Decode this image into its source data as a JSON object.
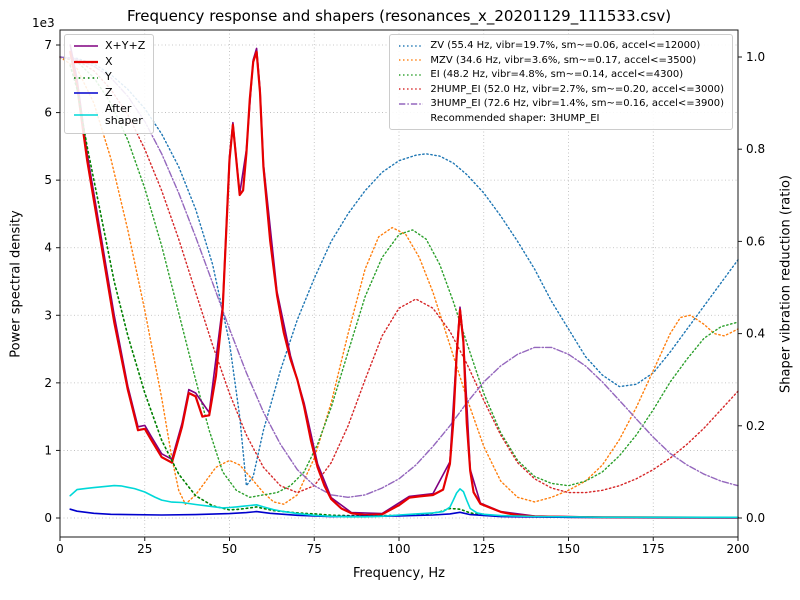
{
  "chart_data": {
    "type": "line",
    "title": "Frequency response and shapers (resonances_x_20201129_111533.csv)",
    "xlabel": "Frequency, Hz",
    "ylabel_left": "Power spectral density",
    "ylabel_right": "Shaper vibration reduction (ratio)",
    "offset_text": "1e3",
    "xlim": [
      0,
      200
    ],
    "ylim_left": [
      0,
      7000
    ],
    "ylim_right": [
      0,
      1.05
    ],
    "grid": true,
    "x_ticks": [
      0,
      25,
      50,
      75,
      100,
      125,
      150,
      175,
      200
    ],
    "y_left_ticks": [
      0,
      1,
      2,
      3,
      4,
      5,
      6,
      7
    ],
    "y_right_ticks": [
      0,
      0.2,
      0.4,
      0.6,
      0.8,
      1.0
    ],
    "y_right_tick_labels": [
      "0.0",
      "0.2",
      "0.4",
      "0.6",
      "0.8",
      "1.0"
    ],
    "psd_series": [
      {
        "name": "X+Y+Z",
        "legend_label": "X+Y+Z",
        "color": "#800080",
        "style": "solid",
        "width": 1.6,
        "x": [
          3,
          5,
          8,
          12,
          16,
          20,
          23,
          25,
          27,
          30,
          33,
          36,
          38,
          40,
          44,
          48,
          50,
          51,
          53,
          55,
          57,
          58,
          59,
          60,
          64,
          68,
          72,
          76,
          80,
          86,
          95,
          103,
          110,
          115,
          117,
          118,
          119,
          121,
          124,
          130,
          140,
          160,
          200
        ],
        "y": [
          7000,
          6500,
          5400,
          4200,
          3000,
          1950,
          1350,
          1370,
          1200,
          950,
          870,
          1400,
          1900,
          1850,
          1560,
          3150,
          5350,
          5850,
          4800,
          5450,
          6780,
          6950,
          6350,
          5250,
          3350,
          2400,
          1700,
          800,
          300,
          80,
          65,
          320,
          360,
          830,
          2450,
          3120,
          2650,
          720,
          220,
          95,
          30,
          12,
          6
        ]
      },
      {
        "name": "X",
        "legend_label": "X",
        "color": "#e60000",
        "style": "solid",
        "width": 2.2,
        "x": [
          3,
          5,
          8,
          12,
          16,
          20,
          23,
          25,
          27,
          30,
          33,
          36,
          38,
          40,
          42,
          44,
          46,
          48,
          50,
          51,
          52,
          53,
          54,
          55,
          56,
          57,
          58,
          59,
          60,
          62,
          64,
          66,
          68,
          70,
          72,
          74,
          76,
          78,
          80,
          83,
          86,
          90,
          95,
          100,
          103,
          106,
          110,
          113,
          115,
          116,
          117,
          118,
          119,
          120,
          121,
          122,
          124,
          127,
          130,
          135,
          140,
          150,
          160,
          180,
          200
        ],
        "y": [
          6900,
          6400,
          5300,
          4100,
          2900,
          1900,
          1300,
          1320,
          1150,
          900,
          820,
          1350,
          1850,
          1800,
          1500,
          1520,
          2100,
          3100,
          5300,
          5820,
          5300,
          4780,
          4850,
          5400,
          6200,
          6750,
          6900,
          6300,
          5200,
          4100,
          3300,
          2750,
          2350,
          2050,
          1650,
          1150,
          750,
          480,
          280,
          140,
          70,
          45,
          55,
          190,
          300,
          320,
          340,
          420,
          800,
          1400,
          2400,
          3080,
          2600,
          1400,
          700,
          380,
          210,
          150,
          90,
          40,
          25,
          15,
          10,
          8,
          5
        ]
      },
      {
        "name": "Y",
        "legend_label": "Y",
        "color": "#008000",
        "style": "dotted",
        "width": 1.6,
        "x": [
          3,
          5,
          8,
          12,
          16,
          20,
          25,
          30,
          35,
          40,
          45,
          50,
          53,
          56,
          58,
          60,
          63,
          66,
          70,
          75,
          80,
          90,
          100,
          108,
          112,
          115,
          118,
          121,
          125,
          130,
          140,
          160,
          200
        ],
        "y": [
          6700,
          6350,
          5500,
          4500,
          3500,
          2700,
          1850,
          1150,
          650,
          330,
          180,
          120,
          130,
          150,
          165,
          140,
          110,
          95,
          75,
          60,
          42,
          30,
          40,
          55,
          90,
          140,
          130,
          75,
          40,
          28,
          18,
          10,
          5
        ]
      },
      {
        "name": "Z",
        "legend_label": "Z",
        "color": "#0000cd",
        "style": "solid",
        "width": 1.6,
        "x": [
          3,
          5,
          10,
          15,
          20,
          30,
          40,
          50,
          55,
          58,
          62,
          70,
          80,
          90,
          100,
          110,
          115,
          118,
          121,
          130,
          150,
          200
        ],
        "y": [
          130,
          100,
          70,
          55,
          50,
          45,
          50,
          65,
          80,
          95,
          70,
          40,
          20,
          25,
          30,
          45,
          60,
          85,
          50,
          20,
          10,
          6
        ]
      },
      {
        "name": "After shaper",
        "legend_label": "After\nshaper",
        "color": "#00d8d8",
        "style": "solid",
        "width": 1.6,
        "x": [
          3,
          5,
          8,
          10,
          13,
          16,
          18,
          20,
          22,
          25,
          28,
          30,
          33,
          36,
          40,
          44,
          48,
          50,
          52,
          54,
          56,
          58,
          60,
          63,
          66,
          70,
          75,
          80,
          85,
          90,
          95,
          100,
          105,
          110,
          113,
          115,
          116,
          117,
          118,
          119,
          120,
          121,
          123,
          125,
          130,
          140,
          160,
          200
        ],
        "y": [
          330,
          420,
          440,
          450,
          465,
          480,
          475,
          455,
          435,
          385,
          310,
          265,
          235,
          230,
          200,
          175,
          150,
          155,
          165,
          175,
          185,
          195,
          165,
          125,
          95,
          65,
          40,
          25,
          18,
          18,
          25,
          45,
          60,
          75,
          95,
          160,
          260,
          370,
          430,
          390,
          260,
          140,
          75,
          55,
          35,
          22,
          12,
          10
        ]
      }
    ],
    "shaper_series": [
      {
        "name": "ZV",
        "label": "ZV (55.4 Hz, vibr=19.7%, sm~=0.06, accel<=12000)",
        "color": "#1f77b4",
        "style": "dotted",
        "width": 1.4,
        "x": [
          0,
          5,
          10,
          15,
          20,
          25,
          30,
          35,
          40,
          45,
          50,
          53,
          55,
          57,
          60,
          65,
          70,
          75,
          80,
          85,
          90,
          95,
          100,
          105,
          108,
          112,
          116,
          120,
          125,
          130,
          135,
          140,
          145,
          150,
          155,
          160,
          165,
          170,
          175,
          180,
          185,
          190,
          195,
          200
        ],
        "y": [
          1.0,
          0.997,
          0.985,
          0.962,
          0.93,
          0.888,
          0.833,
          0.762,
          0.67,
          0.55,
          0.38,
          0.22,
          0.07,
          0.09,
          0.19,
          0.32,
          0.43,
          0.52,
          0.6,
          0.66,
          0.71,
          0.75,
          0.775,
          0.787,
          0.79,
          0.785,
          0.77,
          0.745,
          0.705,
          0.655,
          0.6,
          0.54,
          0.47,
          0.41,
          0.35,
          0.31,
          0.285,
          0.29,
          0.315,
          0.36,
          0.41,
          0.46,
          0.51,
          0.56
        ]
      },
      {
        "name": "MZV",
        "label": "MZV (34.6 Hz, vibr=3.6%, sm~=0.17, accel<=3500)",
        "color": "#ff7f0e",
        "style": "dotted",
        "width": 1.4,
        "x": [
          0,
          5,
          10,
          15,
          20,
          25,
          30,
          33,
          35,
          37,
          40,
          43,
          46,
          50,
          53,
          56,
          60,
          63,
          66,
          70,
          75,
          80,
          85,
          90,
          94,
          98,
          102,
          106,
          110,
          115,
          120,
          125,
          130,
          135,
          140,
          145,
          150,
          155,
          160,
          165,
          170,
          175,
          180,
          183,
          186,
          190,
          193,
          196,
          200
        ],
        "y": [
          1.0,
          0.975,
          0.9,
          0.78,
          0.625,
          0.45,
          0.26,
          0.13,
          0.06,
          0.03,
          0.05,
          0.08,
          0.11,
          0.125,
          0.115,
          0.09,
          0.055,
          0.035,
          0.03,
          0.05,
          0.13,
          0.25,
          0.4,
          0.54,
          0.61,
          0.63,
          0.615,
          0.565,
          0.49,
          0.375,
          0.26,
          0.155,
          0.08,
          0.045,
          0.035,
          0.045,
          0.06,
          0.08,
          0.115,
          0.17,
          0.24,
          0.32,
          0.4,
          0.435,
          0.44,
          0.42,
          0.4,
          0.395,
          0.41
        ]
      },
      {
        "name": "EI",
        "label": "EI (48.2 Hz, vibr=4.8%, sm~=0.14, accel<=4300)",
        "color": "#2ca02c",
        "style": "dotted",
        "width": 1.4,
        "x": [
          0,
          5,
          10,
          15,
          20,
          25,
          30,
          35,
          40,
          44,
          48,
          52,
          56,
          60,
          64,
          68,
          72,
          76,
          80,
          85,
          90,
          95,
          100,
          104,
          108,
          112,
          116,
          120,
          125,
          130,
          135,
          140,
          145,
          150,
          155,
          160,
          165,
          170,
          175,
          180,
          185,
          190,
          195,
          200
        ],
        "y": [
          1.0,
          0.99,
          0.955,
          0.9,
          0.82,
          0.715,
          0.59,
          0.445,
          0.3,
          0.19,
          0.1,
          0.06,
          0.045,
          0.05,
          0.055,
          0.07,
          0.1,
          0.16,
          0.24,
          0.36,
          0.48,
          0.565,
          0.615,
          0.625,
          0.605,
          0.55,
          0.47,
          0.38,
          0.27,
          0.185,
          0.125,
          0.09,
          0.075,
          0.07,
          0.08,
          0.1,
          0.135,
          0.18,
          0.235,
          0.295,
          0.345,
          0.39,
          0.415,
          0.425
        ]
      },
      {
        "name": "2HUMP_EI",
        "label": "2HUMP_EI (52.0 Hz, vibr=2.7%, sm~=0.20, accel<=3000)",
        "color": "#d62728",
        "style": "dotted",
        "width": 1.4,
        "x": [
          0,
          5,
          10,
          15,
          20,
          25,
          30,
          35,
          40,
          45,
          50,
          55,
          60,
          65,
          70,
          75,
          80,
          85,
          90,
          95,
          100,
          105,
          110,
          115,
          120,
          125,
          130,
          135,
          140,
          145,
          150,
          155,
          160,
          165,
          170,
          175,
          180,
          185,
          190,
          195,
          200
        ],
        "y": [
          1.0,
          0.993,
          0.97,
          0.93,
          0.875,
          0.8,
          0.71,
          0.605,
          0.49,
          0.375,
          0.27,
          0.18,
          0.11,
          0.07,
          0.055,
          0.07,
          0.12,
          0.2,
          0.3,
          0.395,
          0.455,
          0.475,
          0.455,
          0.405,
          0.335,
          0.255,
          0.18,
          0.12,
          0.085,
          0.065,
          0.055,
          0.055,
          0.06,
          0.07,
          0.085,
          0.105,
          0.13,
          0.16,
          0.195,
          0.235,
          0.275
        ]
      },
      {
        "name": "3HUMP_EI",
        "label": "3HUMP_EI (72.6 Hz, vibr=1.4%, sm~=0.16, accel<=3900)",
        "color": "#9467bd",
        "style": "dashdot",
        "width": 1.4,
        "x": [
          0,
          5,
          10,
          15,
          20,
          25,
          30,
          35,
          40,
          45,
          50,
          55,
          60,
          65,
          70,
          75,
          80,
          85,
          90,
          95,
          100,
          105,
          110,
          115,
          120,
          125,
          130,
          135,
          140,
          145,
          150,
          155,
          160,
          165,
          170,
          175,
          180,
          185,
          190,
          195,
          200
        ],
        "y": [
          1.0,
          0.995,
          0.98,
          0.955,
          0.915,
          0.86,
          0.79,
          0.705,
          0.61,
          0.51,
          0.41,
          0.315,
          0.23,
          0.16,
          0.105,
          0.07,
          0.05,
          0.045,
          0.05,
          0.065,
          0.085,
          0.115,
          0.155,
          0.2,
          0.25,
          0.295,
          0.33,
          0.355,
          0.37,
          0.37,
          0.355,
          0.33,
          0.295,
          0.255,
          0.215,
          0.175,
          0.14,
          0.115,
          0.095,
          0.08,
          0.07
        ]
      }
    ],
    "recommended": "Recommended shaper: 3HUMP_EI"
  }
}
